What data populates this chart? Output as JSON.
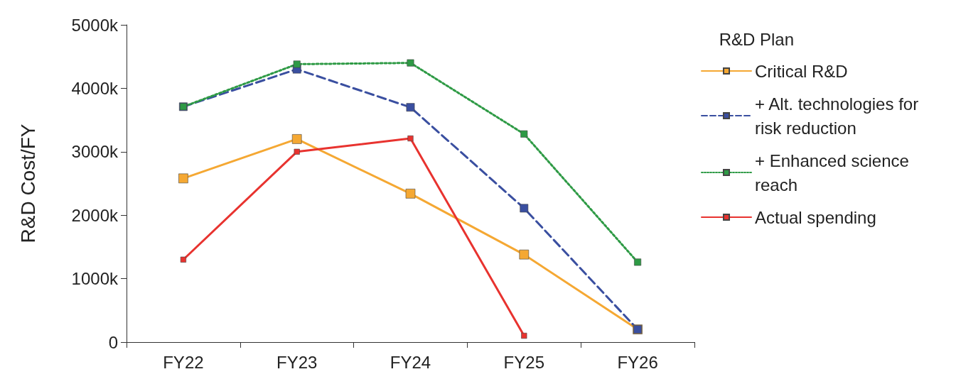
{
  "chart_data": {
    "type": "line",
    "ylabel": "R&D Cost/FY",
    "legend_title": "R&D Plan",
    "legend": "top right",
    "marker": "square",
    "grid": false,
    "categories": [
      "FY22",
      "FY23",
      "FY24",
      "FY25",
      "FY26"
    ],
    "ylim": [
      0,
      5000
    ],
    "yticks": [
      0,
      {
        "value": 1000,
        "label": "1000k"
      },
      {
        "value": 2000,
        "label": "2000k"
      },
      {
        "value": 3000,
        "label": "3000k"
      },
      {
        "value": 4000,
        "label": "4000k"
      },
      {
        "value": 5000,
        "label": "5000k"
      }
    ],
    "series": [
      {
        "name": "Critical R&D",
        "color": "#f5a833",
        "line_style": "solid",
        "values": [
          2580,
          3200,
          2340,
          1380,
          200
        ]
      },
      {
        "name": "+ Alt. technologies for risk reduction",
        "color": "#3a4fa0",
        "line_style": "dashed",
        "values": [
          3710,
          4300,
          3700,
          2110,
          200
        ]
      },
      {
        "name": "+ Enhanced science reach",
        "color": "#2e9a45",
        "line_style": "dotted",
        "values": [
          3710,
          4380,
          4400,
          3280,
          1260
        ]
      },
      {
        "name": "Actual spending",
        "color": "#e8332f",
        "line_style": "solid",
        "values": [
          1300,
          3000,
          3210,
          100,
          null
        ]
      }
    ]
  }
}
